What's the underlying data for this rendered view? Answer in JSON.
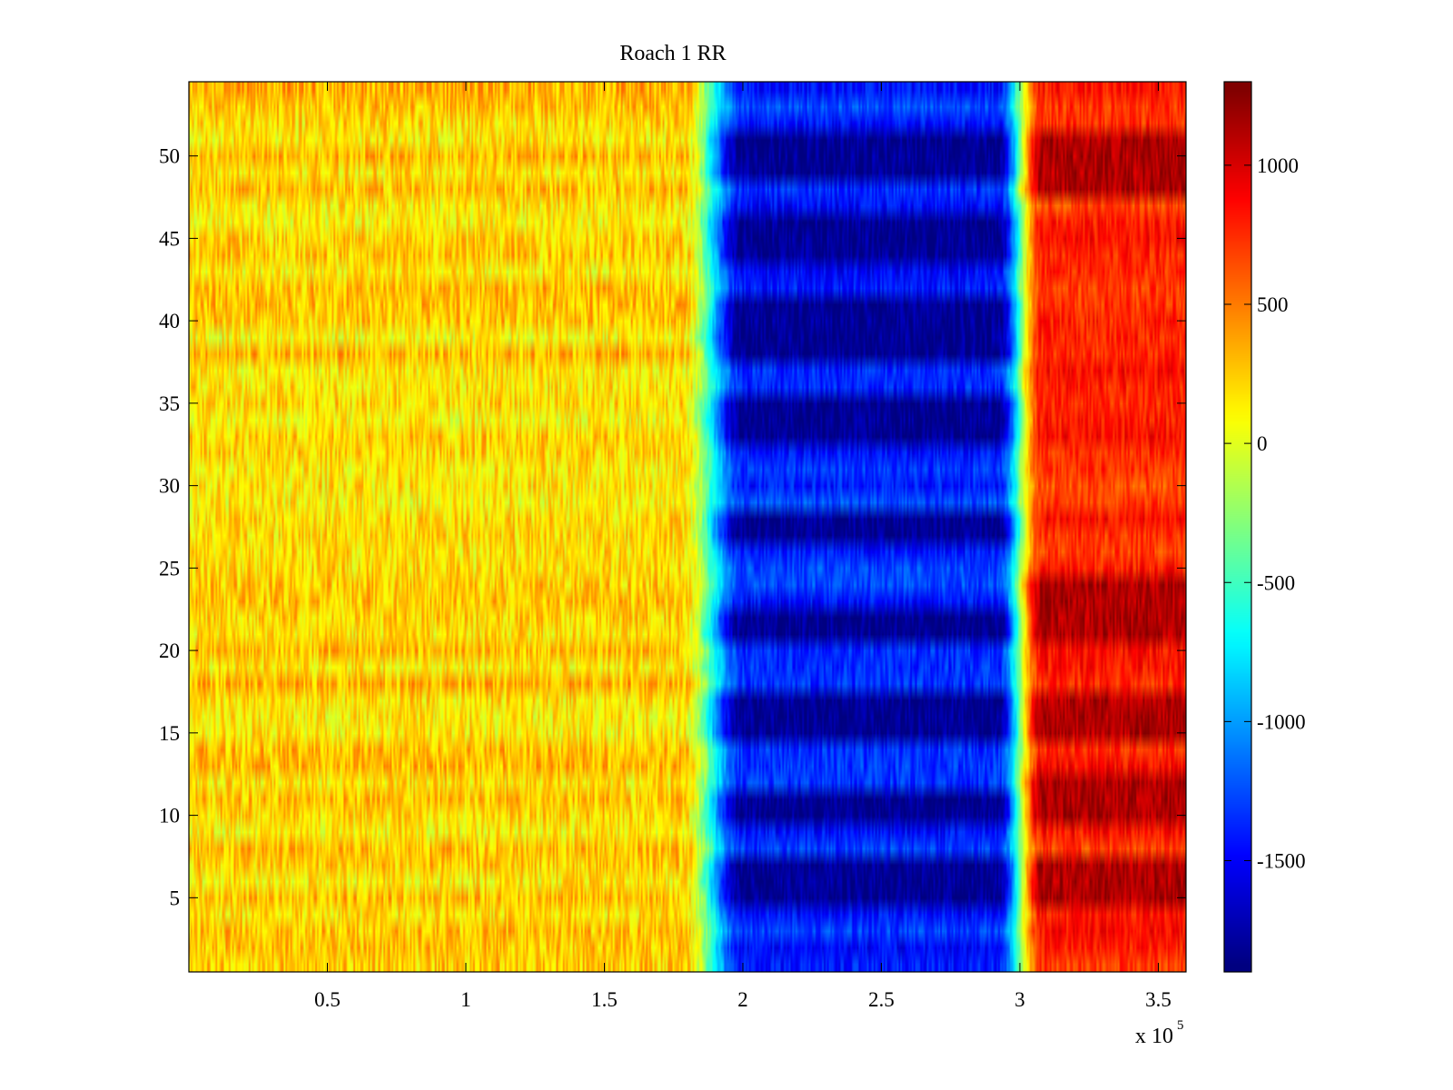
{
  "chart_data": {
    "type": "heatmap",
    "title": "Roach 1 RR",
    "xlabel": "",
    "ylabel": "",
    "x_multiplier_label": "x 10",
    "x_multiplier_exponent": "5",
    "xlim": [
      0,
      3.6
    ],
    "ylim": [
      0.5,
      54.5
    ],
    "x_ticks": [
      0.5,
      1,
      1.5,
      2,
      2.5,
      3,
      3.5
    ],
    "x_tick_labels": [
      "0.5",
      "1",
      "1.5",
      "2",
      "2.5",
      "3",
      "3.5"
    ],
    "y_ticks": [
      5,
      10,
      15,
      20,
      25,
      30,
      35,
      40,
      45,
      50
    ],
    "y_tick_labels": [
      "5",
      "10",
      "15",
      "20",
      "25",
      "30",
      "35",
      "40",
      "45",
      "50"
    ],
    "rows": 54,
    "colormap": "jet",
    "colorbar": {
      "clim": [
        -1900,
        1300
      ],
      "ticks": [
        1000,
        500,
        0,
        -500,
        -1000,
        -1500
      ],
      "tick_labels": [
        "1000",
        "500",
        "0",
        "-500",
        "-1000",
        "-1500"
      ],
      "levels": 64
    },
    "x_regions": [
      {
        "x_start": 0,
        "x_end": 1.8,
        "value_approx": 200,
        "description_label": ""
      },
      {
        "x_start": 1.8,
        "x_end": 1.95,
        "value_approx": -600
      },
      {
        "x_start": 1.95,
        "x_end": 2.95,
        "value_approx": -1500
      },
      {
        "x_start": 2.95,
        "x_end": 3.05,
        "value_approx": -500
      },
      {
        "x_start": 3.05,
        "x_end": 3.6,
        "value_approx": 700
      }
    ],
    "strong_negative_row_bands": [
      [
        5,
        7
      ],
      [
        10,
        11
      ],
      [
        15,
        17
      ],
      [
        21,
        22
      ],
      [
        27,
        28
      ],
      [
        33,
        35
      ],
      [
        38,
        41
      ],
      [
        44,
        46
      ],
      [
        49,
        51
      ]
    ],
    "strong_positive_row_bands": [
      [
        5,
        7
      ],
      [
        10,
        12
      ],
      [
        15,
        17
      ],
      [
        21,
        24
      ],
      [
        48,
        51
      ]
    ],
    "grid": false,
    "legend": "none"
  },
  "colors": {
    "background": "#ffffff",
    "axes": "#000000"
  }
}
